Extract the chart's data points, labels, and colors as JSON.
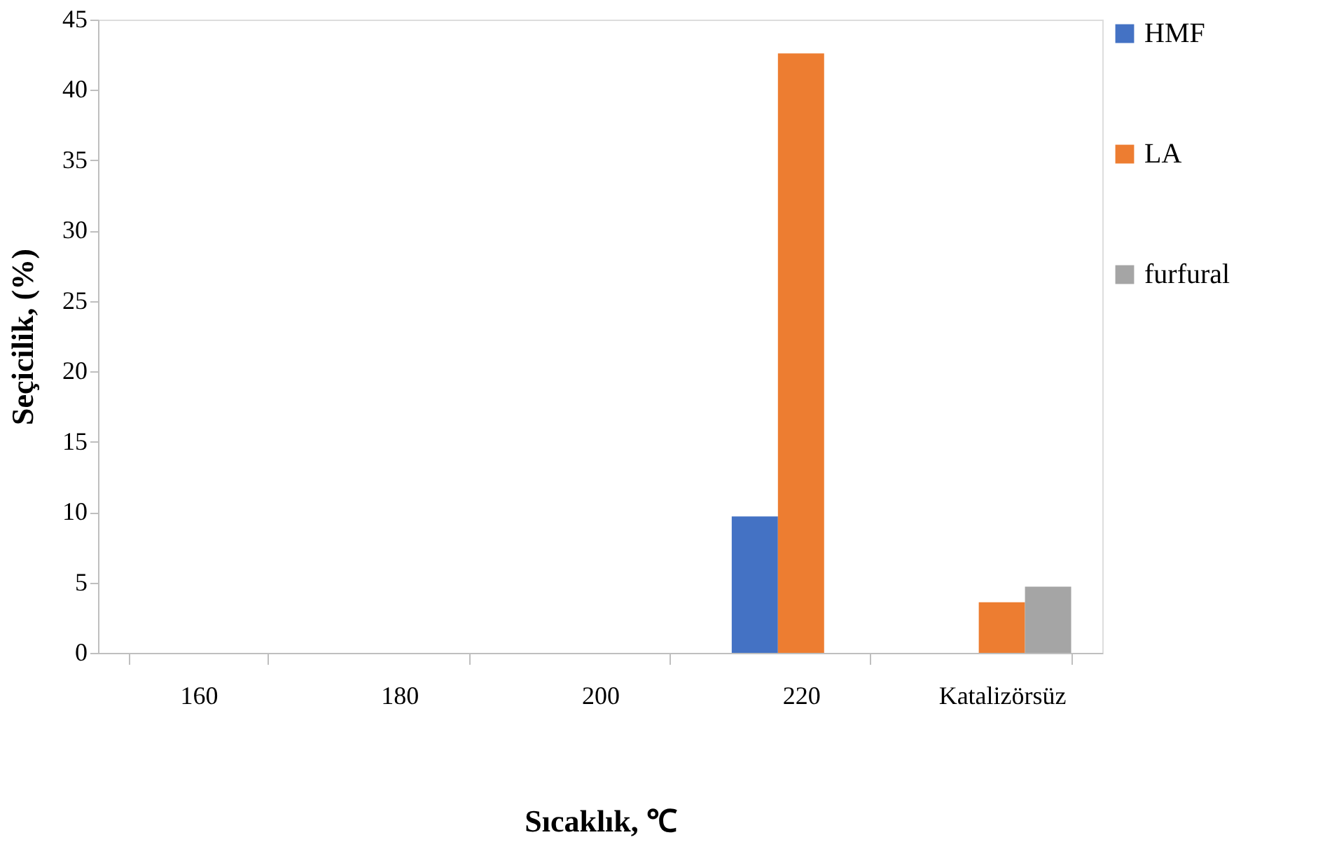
{
  "chart_data": {
    "type": "bar",
    "xlabel": "Sıcaklık, ℃",
    "ylabel": "Seçicilik, (%)",
    "categories": [
      "160",
      "180",
      "200",
      "220",
      "Katalizörsüz"
    ],
    "series": [
      {
        "name": "HMF",
        "color": "#4472c4",
        "values": [
          null,
          null,
          null,
          9.7,
          null
        ]
      },
      {
        "name": "LA",
        "color": "#ed7d31",
        "values": [
          null,
          null,
          null,
          42.6,
          3.6
        ]
      },
      {
        "name": "furfural",
        "color": "#a5a5a5",
        "values": [
          null,
          null,
          null,
          null,
          4.7
        ]
      }
    ],
    "ylim": [
      0,
      45
    ],
    "yticks": [
      0,
      5,
      10,
      15,
      20,
      25,
      30,
      35,
      40,
      45
    ],
    "grid": false,
    "legend": "right"
  }
}
